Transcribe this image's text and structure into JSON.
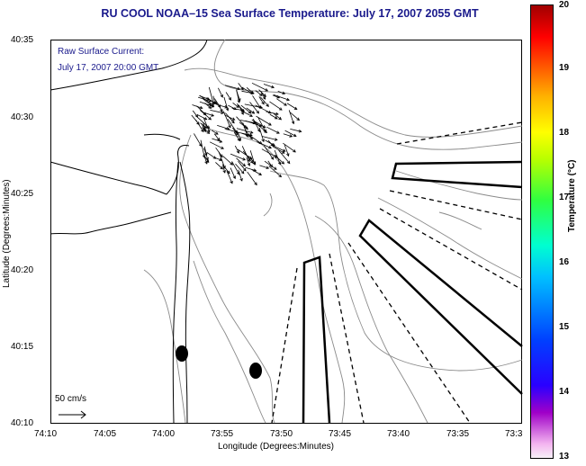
{
  "title": "RU COOL  NOAA–15  Sea Surface Temperature:  July 17, 2007 2055 GMT",
  "annotation_line1": "Raw Surface Current:",
  "annotation_line2": "July 17, 2007 20:00 GMT",
  "scale_label": "50 cm/s",
  "y_axis_title": "Latitude (Degrees:Minutes)",
  "x_axis_title": "Longitude (Degrees:Minutes)",
  "y_ticks": [
    "40:35",
    "40:30",
    "40:25",
    "40:20",
    "40:15",
    "40:10"
  ],
  "x_ticks": [
    "74:10",
    "74:05",
    "74:00",
    "73:55",
    "73:50",
    "73:45",
    "73:40",
    "73:35",
    "73:3"
  ],
  "colorbar": {
    "title": "Temperature (°C)",
    "ticks": [
      "20",
      "19",
      "18",
      "17",
      "16",
      "15",
      "14",
      "13"
    ]
  },
  "colors": {
    "title": "#1a1a8c",
    "coast": "#000000",
    "bathymetry": "#888888",
    "arrows": "#000000"
  }
}
